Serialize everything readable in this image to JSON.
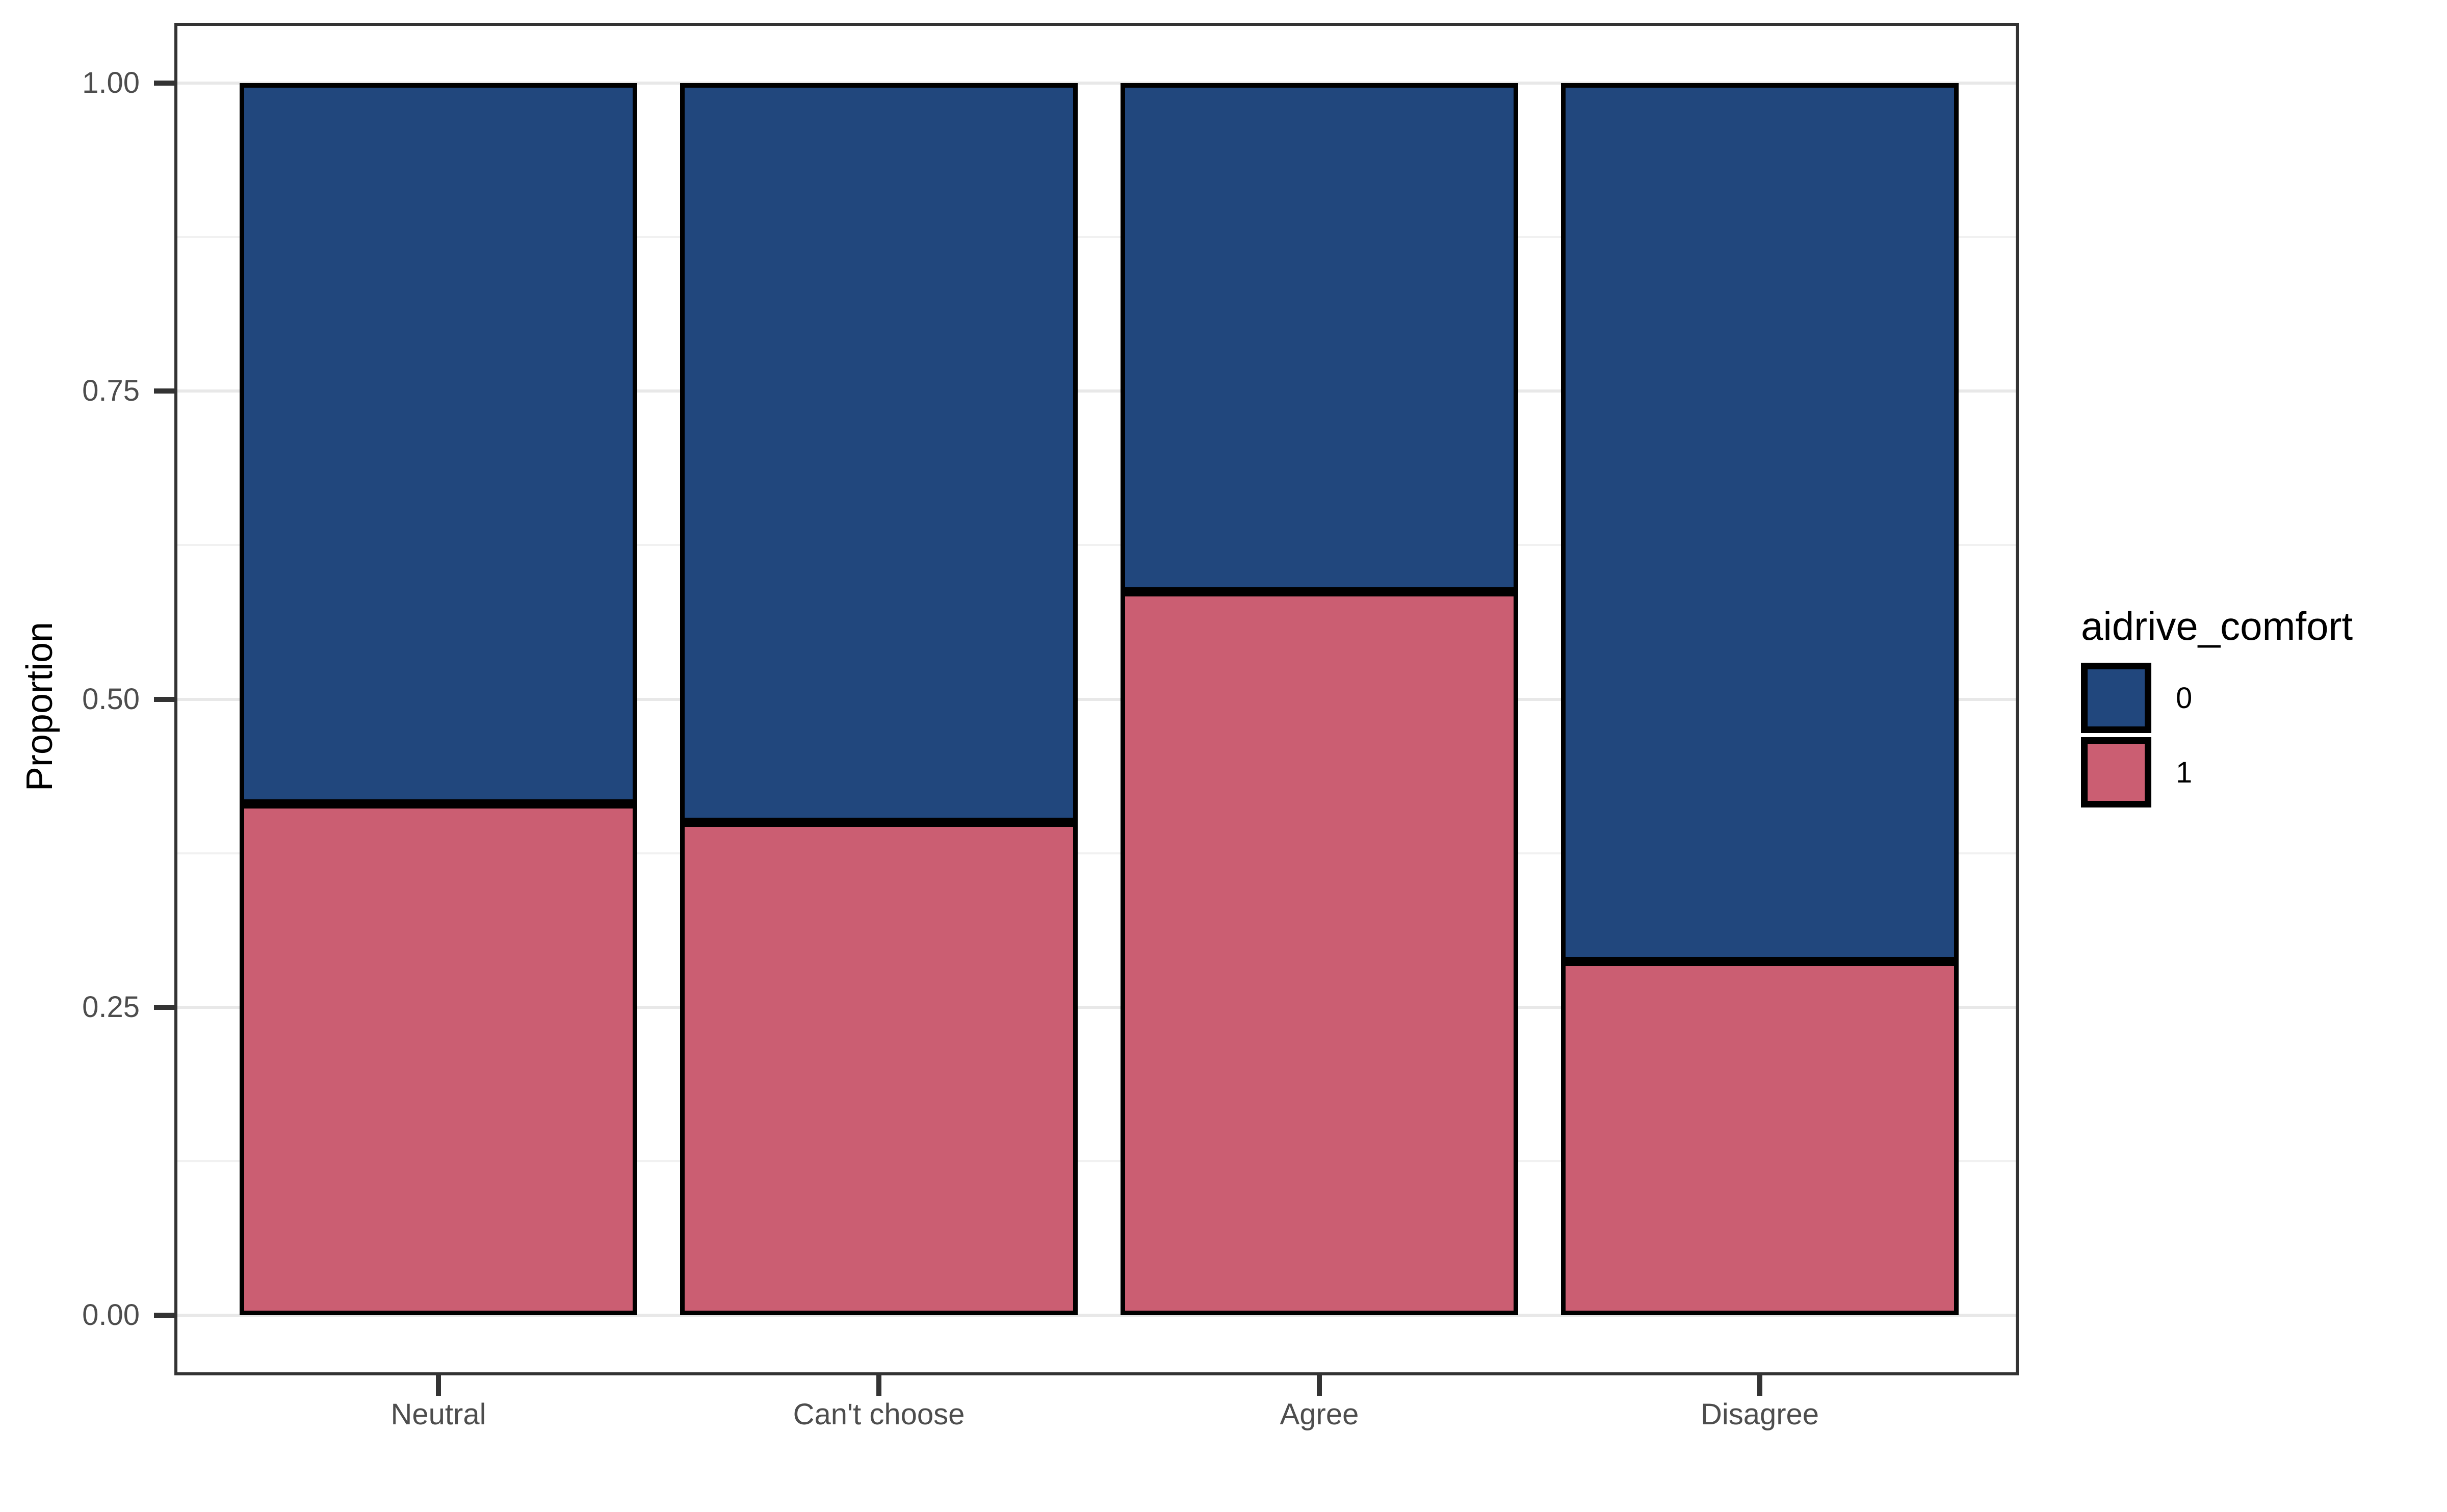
{
  "figure": {
    "background": "#FFFFFF"
  },
  "chart_data": {
    "type": "bar",
    "stacked": true,
    "orientation": "vertical",
    "title": "",
    "xlabel": "",
    "ylabel": "Proportion",
    "categories": [
      "Neutral",
      "Can't choose",
      "Agree",
      "Disagree"
    ],
    "series": [
      {
        "name": "0",
        "color": "#21477D",
        "values": [
          0.585,
          0.6,
          0.413,
          0.713
        ]
      },
      {
        "name": "1",
        "color": "#CB5E72",
        "values": [
          0.415,
          0.4,
          0.587,
          0.287
        ]
      }
    ],
    "ylim": [
      0,
      1
    ],
    "y_ticks": [
      {
        "value": 0.0,
        "label": "0.00"
      },
      {
        "value": 0.25,
        "label": "0.25"
      },
      {
        "value": 0.5,
        "label": "0.50"
      },
      {
        "value": 0.75,
        "label": "0.75"
      },
      {
        "value": 1.0,
        "label": "1.00"
      }
    ],
    "y_minor_ticks": [
      0.125,
      0.375,
      0.625,
      0.875
    ],
    "grid": "major+minor",
    "legend_position": "right"
  },
  "legend": {
    "title": "aidrive_comfort",
    "entries": [
      {
        "label": "0",
        "color": "#21477D"
      },
      {
        "label": "1",
        "color": "#CB5E72"
      }
    ]
  },
  "colors": {
    "series0_blue": "#21477D",
    "series1_pink": "#CB5E72",
    "panel_border": "#333333",
    "gridline_major": "#E8E8E8",
    "gridline_minor": "#F1F1F1",
    "tick_mark": "#333333",
    "tick_label_text": "#4D4D4D",
    "title_text": "#000000",
    "background": "#FFFFFF"
  }
}
